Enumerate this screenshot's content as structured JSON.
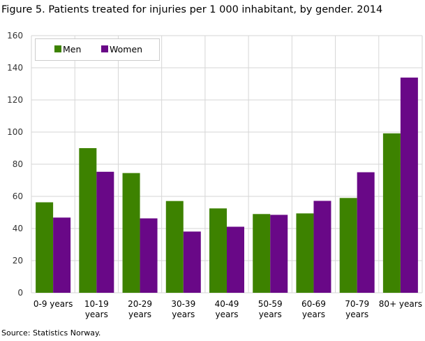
{
  "chart_data": {
    "type": "bar",
    "title": "Figure 5. Patients treated for injuries per 1 000 inhabitant, by gender. 2014",
    "source": "Source: Statistics Norway.",
    "categories": [
      [
        "0-9 years"
      ],
      [
        "10-19",
        "years"
      ],
      [
        "20-29",
        "years"
      ],
      [
        "30-39",
        "years"
      ],
      [
        "40-49",
        "years"
      ],
      [
        "50-59",
        "years"
      ],
      [
        "60-69",
        "years"
      ],
      [
        "70-79",
        "years"
      ],
      [
        "80+ years"
      ]
    ],
    "series": [
      {
        "name": "Men",
        "color": "#3d8200",
        "values": [
          56.3,
          90.0,
          74.5,
          57.1,
          52.5,
          49.0,
          49.4,
          59.0,
          99.2
        ]
      },
      {
        "name": "Women",
        "color": "#690887",
        "values": [
          46.8,
          75.3,
          46.3,
          38.1,
          41.1,
          48.5,
          57.2,
          75.0,
          133.9
        ]
      }
    ],
    "ylim": [
      0,
      160
    ],
    "yticks": [
      0,
      20,
      40,
      60,
      80,
      100,
      120,
      140,
      160
    ],
    "grid": true,
    "legend": "top-left"
  }
}
